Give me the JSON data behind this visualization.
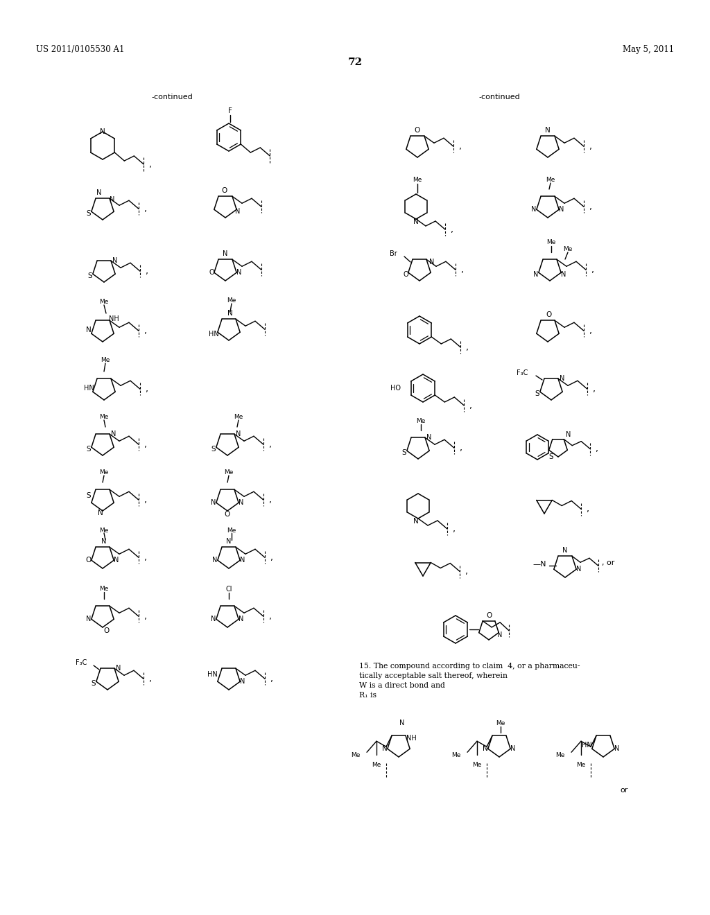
{
  "page_number": "72",
  "patent_number": "US 2011/0105530 A1",
  "patent_date": "May 5, 2011",
  "bg_color": "#ffffff",
  "text_color": "#000000",
  "continued_left": "-continued",
  "continued_right": "-continued",
  "claim15_line1": "15. The compound according to claim  4, or a pharmaceu-",
  "claim15_line2": "tically acceptable salt thereof, wherein",
  "claim15_line3": "W is a direct bond and",
  "claim15_line4": "R₁ is"
}
